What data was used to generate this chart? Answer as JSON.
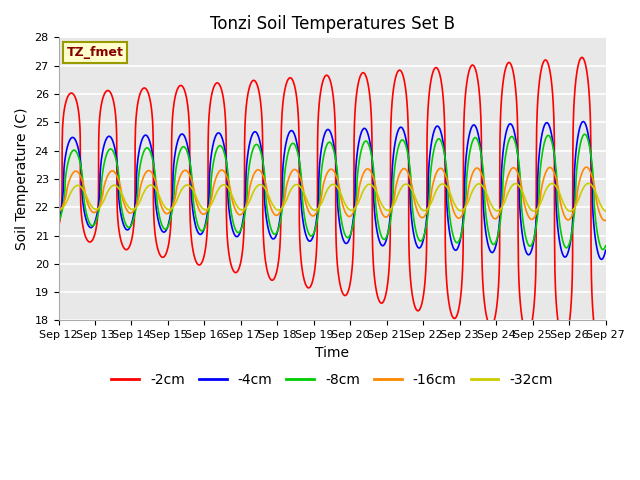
{
  "title": "Tonzi Soil Temperatures Set B",
  "xlabel": "Time",
  "ylabel": "Soil Temperature (C)",
  "annotation": "TZ_fmet",
  "ylim": [
    18.0,
    28.0
  ],
  "yticks": [
    18.0,
    19.0,
    20.0,
    21.0,
    22.0,
    23.0,
    24.0,
    25.0,
    26.0,
    27.0,
    28.0
  ],
  "x_start_day": 12,
  "x_end_day": 27,
  "xtick_days": [
    12,
    13,
    14,
    15,
    16,
    17,
    18,
    19,
    20,
    21,
    22,
    23,
    24,
    25,
    26,
    27
  ],
  "series": [
    {
      "label": "-2cm",
      "color": "#ff0000",
      "base_amp": 2.5,
      "amp_growth": 0.18,
      "period": 1.0,
      "mean_start": 23.5,
      "mean_drift": -0.09,
      "phase": 0.62,
      "sharpness": 0.25
    },
    {
      "label": "-4cm",
      "color": "#0000ff",
      "base_amp": 1.55,
      "amp_growth": 0.06,
      "period": 1.0,
      "mean_start": 22.9,
      "mean_drift": -0.02,
      "phase": 0.85,
      "sharpness": 0.5
    },
    {
      "label": "-8cm",
      "color": "#00cc00",
      "base_amp": 1.3,
      "amp_growth": 0.05,
      "period": 1.0,
      "mean_start": 22.7,
      "mean_drift": -0.01,
      "phase": 1.1,
      "sharpness": 0.6
    },
    {
      "label": "-16cm",
      "color": "#ff8800",
      "base_amp": 0.72,
      "amp_growth": 0.015,
      "period": 1.0,
      "mean_start": 22.55,
      "mean_drift": -0.005,
      "phase": 1.4,
      "sharpness": 0.75
    },
    {
      "label": "-32cm",
      "color": "#cccc00",
      "base_amp": 0.42,
      "amp_growth": 0.005,
      "period": 1.0,
      "mean_start": 22.35,
      "mean_drift": 0.0,
      "phase": 1.75,
      "sharpness": 0.9
    }
  ],
  "bg_color": "#e8e8e8",
  "grid_color": "#ffffff",
  "title_fontsize": 12,
  "label_fontsize": 10,
  "tick_fontsize": 8,
  "legend_fontsize": 10
}
